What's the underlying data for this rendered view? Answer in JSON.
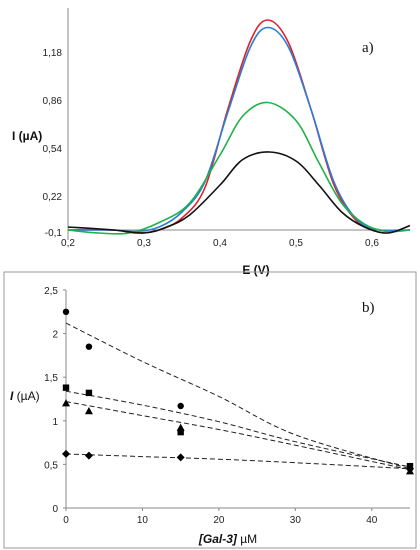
{
  "chart_data": [
    {
      "type": "line",
      "panel_label": "a)",
      "xlabel": "E (V)",
      "ylabel": "I (µA)",
      "xlim": [
        0.2,
        0.65
      ],
      "ylim": [
        -0.1,
        1.48
      ],
      "x_ticks": [
        "0,2",
        "0,3",
        "0,4",
        "0,5",
        "0,6"
      ],
      "y_ticks": [
        "-0,1",
        "0,22",
        "0,54",
        "0,86",
        "1,18"
      ],
      "grid": false,
      "series": [
        {
          "color": "#e0202a",
          "points": [
            [
              0.2,
              0.0
            ],
            [
              0.26,
              0.0
            ],
            [
              0.29,
              -0.02
            ],
            [
              0.32,
              0.0
            ],
            [
              0.35,
              0.08
            ],
            [
              0.38,
              0.28
            ],
            [
              0.41,
              0.8
            ],
            [
              0.44,
              1.26
            ],
            [
              0.463,
              1.4
            ],
            [
              0.49,
              1.25
            ],
            [
              0.52,
              0.8
            ],
            [
              0.55,
              0.3
            ],
            [
              0.58,
              0.06
            ],
            [
              0.61,
              0.0
            ],
            [
              0.65,
              0.0
            ]
          ]
        },
        {
          "color": "#2a7ed8",
          "points": [
            [
              0.2,
              0.0
            ],
            [
              0.26,
              0.0
            ],
            [
              0.29,
              -0.01
            ],
            [
              0.32,
              0.02
            ],
            [
              0.35,
              0.12
            ],
            [
              0.38,
              0.32
            ],
            [
              0.41,
              0.78
            ],
            [
              0.44,
              1.22
            ],
            [
              0.463,
              1.35
            ],
            [
              0.49,
              1.22
            ],
            [
              0.52,
              0.8
            ],
            [
              0.55,
              0.32
            ],
            [
              0.58,
              0.07
            ],
            [
              0.61,
              0.0
            ],
            [
              0.65,
              0.0
            ]
          ]
        },
        {
          "color": "#1fb24a",
          "points": [
            [
              0.2,
              0.0
            ],
            [
              0.24,
              -0.02
            ],
            [
              0.28,
              -0.02
            ],
            [
              0.32,
              0.05
            ],
            [
              0.36,
              0.18
            ],
            [
              0.4,
              0.5
            ],
            [
              0.43,
              0.76
            ],
            [
              0.463,
              0.85
            ],
            [
              0.5,
              0.73
            ],
            [
              0.53,
              0.45
            ],
            [
              0.56,
              0.18
            ],
            [
              0.59,
              0.04
            ],
            [
              0.62,
              -0.01
            ],
            [
              0.65,
              0.0
            ]
          ]
        },
        {
          "color": "#111111",
          "points": [
            [
              0.2,
              0.02
            ],
            [
              0.26,
              0.0
            ],
            [
              0.3,
              -0.02
            ],
            [
              0.33,
              0.02
            ],
            [
              0.36,
              0.1
            ],
            [
              0.4,
              0.3
            ],
            [
              0.43,
              0.47
            ],
            [
              0.465,
              0.52
            ],
            [
              0.5,
              0.46
            ],
            [
              0.53,
              0.3
            ],
            [
              0.56,
              0.12
            ],
            [
              0.59,
              0.02
            ],
            [
              0.62,
              -0.02
            ],
            [
              0.65,
              0.03
            ]
          ]
        }
      ]
    },
    {
      "type": "scatter",
      "panel_label": "b)",
      "xlabel_italic": "[Gal-3]",
      "xlabel_unit": " µM",
      "ylabel_italic": "I",
      "ylabel_unit": " (µA)",
      "xlim": [
        0,
        45
      ],
      "ylim": [
        0,
        2.5
      ],
      "x_ticks": [
        "0",
        "10",
        "20",
        "30",
        "40"
      ],
      "y_ticks": [
        "0",
        "0,5",
        "1",
        "1,5",
        "2",
        "2,5"
      ],
      "grid": false,
      "series": [
        {
          "marker": "circle",
          "x": [
            0,
            3,
            15,
            45
          ],
          "y": [
            2.25,
            1.85,
            1.17,
            0.45
          ],
          "fit": [
            2.12,
            1.68,
            1.28,
            0.84,
            0.45
          ]
        },
        {
          "marker": "square",
          "x": [
            0,
            3,
            15,
            45
          ],
          "y": [
            1.38,
            1.32,
            0.87,
            0.48
          ],
          "fit": [
            1.34,
            1.18,
            0.99,
            0.76,
            0.47
          ]
        },
        {
          "marker": "triangle",
          "x": [
            0,
            3,
            15,
            45
          ],
          "y": [
            1.2,
            1.11,
            0.92,
            0.42
          ],
          "fit": [
            1.22,
            1.06,
            0.9,
            0.72,
            0.44
          ]
        },
        {
          "marker": "diamond",
          "x": [
            0,
            3,
            15,
            45
          ],
          "y": [
            0.62,
            0.6,
            0.58,
            0.45
          ],
          "fit": [
            0.62,
            0.59,
            0.56,
            0.52,
            0.45
          ]
        }
      ],
      "fit_x": [
        0,
        10,
        20,
        30,
        45
      ]
    }
  ]
}
